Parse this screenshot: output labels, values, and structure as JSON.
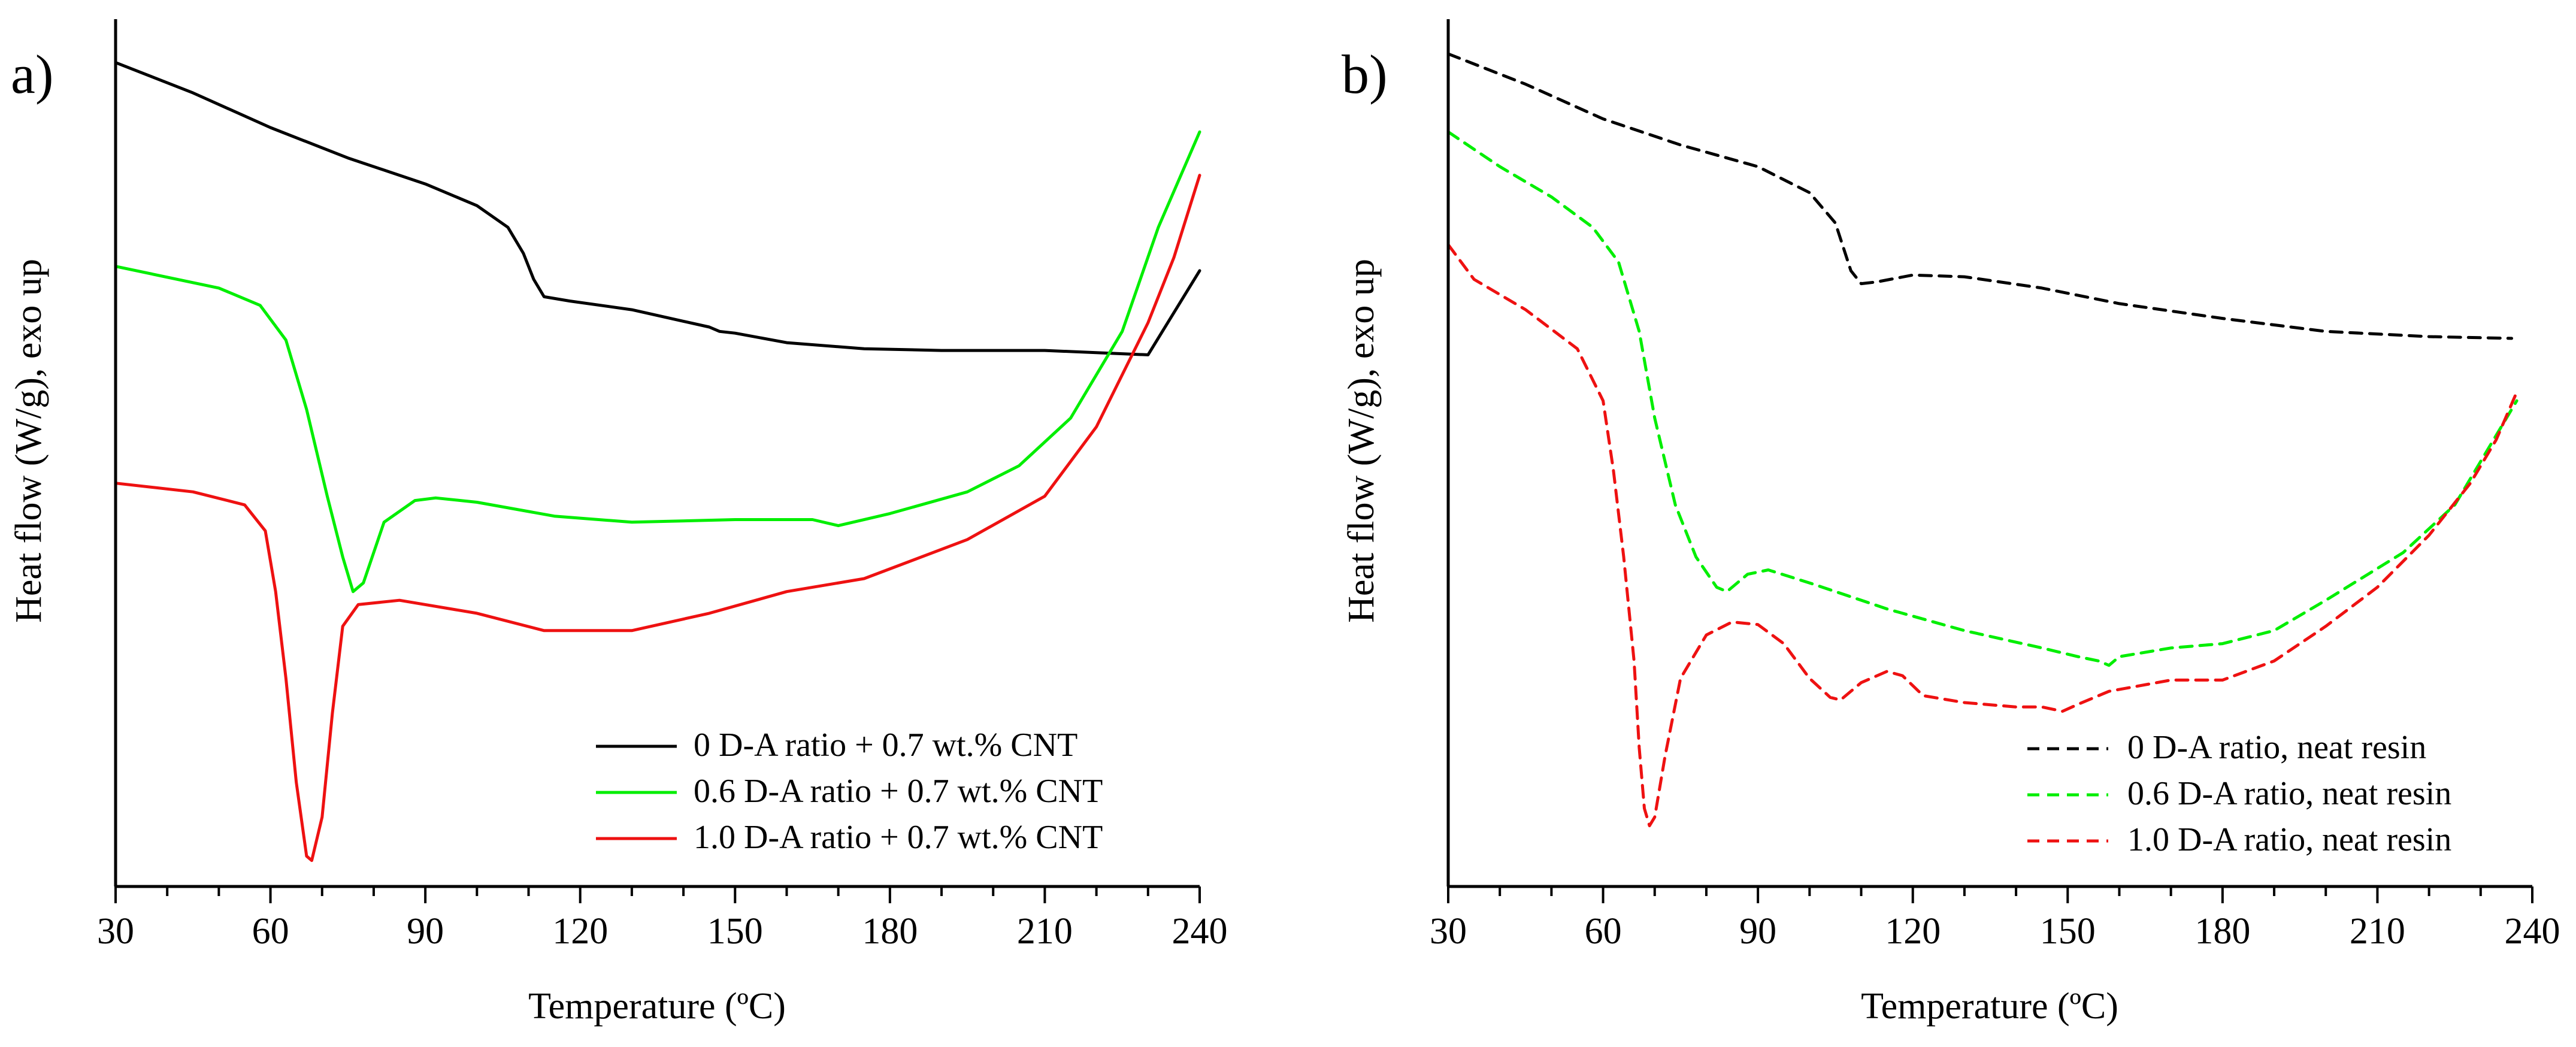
{
  "chart_data": [
    {
      "type": "line",
      "panel_label": "a)",
      "xlabel": "Temperature (ºC)",
      "ylabel": "Heat flow (W/g), exo up",
      "xlim": [
        30,
        240
      ],
      "ylim": [
        0,
        100
      ],
      "xticks": [
        "30",
        "60",
        "90",
        "120",
        "150",
        "180",
        "210",
        "240"
      ],
      "yticks_shown": false,
      "legend_position": "bottom-right",
      "series": [
        {
          "name": "0 D-A ratio + 0.7 wt.% CNT",
          "color": "#000000",
          "dash": "solid",
          "points": [
            [
              30,
              95
            ],
            [
              45,
              91.5
            ],
            [
              60,
              87.5
            ],
            [
              75,
              84
            ],
            [
              90,
              81
            ],
            [
              100,
              78.5
            ],
            [
              106,
              76
            ],
            [
              109,
              73
            ],
            [
              111,
              70
            ],
            [
              113,
              68
            ],
            [
              118,
              67.5
            ],
            [
              130,
              66.5
            ],
            [
              145,
              64.5
            ],
            [
              147,
              64
            ],
            [
              150,
              63.8
            ],
            [
              160,
              62.7
            ],
            [
              175,
              62
            ],
            [
              190,
              61.8
            ],
            [
              210,
              61.8
            ],
            [
              230,
              61.3
            ],
            [
              240,
              71
            ]
          ]
        },
        {
          "name": "0.6 D-A ratio + 0.7 wt.% CNT",
          "color": "#00ee00",
          "dash": "solid",
          "points": [
            [
              30,
              71.5
            ],
            [
              50,
              69
            ],
            [
              58,
              67
            ],
            [
              63,
              63
            ],
            [
              67,
              55
            ],
            [
              71,
              45
            ],
            [
              74,
              38
            ],
            [
              76,
              34
            ],
            [
              78,
              35
            ],
            [
              82,
              42
            ],
            [
              88,
              44.5
            ],
            [
              92,
              44.8
            ],
            [
              100,
              44.3
            ],
            [
              115,
              42.7
            ],
            [
              130,
              42
            ],
            [
              150,
              42.3
            ],
            [
              165,
              42.3
            ],
            [
              170,
              41.6
            ],
            [
              180,
              43
            ],
            [
              195,
              45.5
            ],
            [
              205,
              48.5
            ],
            [
              215,
              54
            ],
            [
              225,
              64
            ],
            [
              232,
              76
            ],
            [
              240,
              87
            ]
          ]
        },
        {
          "name": "1.0 D-A ratio + 0.7 wt.% CNT",
          "color": "#ee1111",
          "dash": "solid",
          "points": [
            [
              30,
              46.5
            ],
            [
              45,
              45.5
            ],
            [
              55,
              44
            ],
            [
              59,
              41
            ],
            [
              61,
              34
            ],
            [
              63,
              24
            ],
            [
              65,
              12
            ],
            [
              67,
              3.5
            ],
            [
              68,
              3
            ],
            [
              70,
              8
            ],
            [
              72,
              20
            ],
            [
              74,
              30
            ],
            [
              77,
              32.5
            ],
            [
              85,
              33
            ],
            [
              100,
              31.5
            ],
            [
              113,
              29.5
            ],
            [
              120,
              29.5
            ],
            [
              130,
              29.5
            ],
            [
              145,
              31.5
            ],
            [
              160,
              34
            ],
            [
              175,
              35.5
            ],
            [
              195,
              40
            ],
            [
              210,
              45
            ],
            [
              220,
              53
            ],
            [
              230,
              65
            ],
            [
              235,
              72.5
            ],
            [
              240,
              82
            ]
          ]
        }
      ]
    },
    {
      "type": "line",
      "panel_label": "b)",
      "xlabel": "Temperature (ºC)",
      "ylabel": "Heat flow (W/g), exo up",
      "xlim": [
        30,
        240
      ],
      "ylim": [
        0,
        100
      ],
      "xticks": [
        "30",
        "60",
        "90",
        "120",
        "150",
        "180",
        "210",
        "240"
      ],
      "yticks_shown": false,
      "legend_position": "bottom-right",
      "series": [
        {
          "name": "0 D-A ratio, neat resin",
          "color": "#000000",
          "dash": "dashed",
          "points": [
            [
              30,
              96
            ],
            [
              45,
              92.5
            ],
            [
              60,
              88.5
            ],
            [
              75,
              85.5
            ],
            [
              90,
              83
            ],
            [
              100,
              80
            ],
            [
              105,
              76.5
            ],
            [
              108,
              71
            ],
            [
              110,
              69.5
            ],
            [
              113,
              69.7
            ],
            [
              120,
              70.5
            ],
            [
              130,
              70.3
            ],
            [
              145,
              69
            ],
            [
              160,
              67.2
            ],
            [
              180,
              65.5
            ],
            [
              200,
              64
            ],
            [
              220,
              63.4
            ],
            [
              236,
              63.2
            ]
          ]
        },
        {
          "name": "0.6 D-A ratio, neat resin",
          "color": "#00ee00",
          "dash": "dashed",
          "points": [
            [
              30,
              87
            ],
            [
              40,
              83
            ],
            [
              50,
              79.5
            ],
            [
              58,
              76
            ],
            [
              63,
              72
            ],
            [
              67,
              64
            ],
            [
              70,
              54
            ],
            [
              74,
              44
            ],
            [
              78,
              38
            ],
            [
              82,
              34.5
            ],
            [
              84,
              34
            ],
            [
              88,
              36
            ],
            [
              92,
              36.5
            ],
            [
              100,
              35
            ],
            [
              115,
              32
            ],
            [
              130,
              29.5
            ],
            [
              145,
              27.5
            ],
            [
              152,
              26.5
            ],
            [
              156,
              26
            ],
            [
              158,
              25.5
            ],
            [
              160,
              26.5
            ],
            [
              170,
              27.5
            ],
            [
              180,
              28
            ],
            [
              190,
              29.5
            ],
            [
              200,
              33
            ],
            [
              215,
              38.5
            ],
            [
              225,
              44
            ],
            [
              232,
              51
            ],
            [
              237,
              56
            ]
          ]
        },
        {
          "name": "1.0 D-A ratio, neat resin",
          "color": "#ee1111",
          "dash": "dashed",
          "points": [
            [
              30,
              74
            ],
            [
              35,
              70
            ],
            [
              45,
              66.5
            ],
            [
              55,
              62
            ],
            [
              60,
              56
            ],
            [
              62,
              48
            ],
            [
              64,
              38
            ],
            [
              66,
              26
            ],
            [
              67,
              16
            ],
            [
              68,
              9
            ],
            [
              69,
              7
            ],
            [
              70,
              8
            ],
            [
              72,
              15
            ],
            [
              75,
              24
            ],
            [
              80,
              29
            ],
            [
              85,
              30.5
            ],
            [
              90,
              30.2
            ],
            [
              95,
              28
            ],
            [
              100,
              24
            ],
            [
              104,
              21.8
            ],
            [
              106,
              21.5
            ],
            [
              110,
              23.5
            ],
            [
              115,
              24.8
            ],
            [
              118,
              24.3
            ],
            [
              122,
              22
            ],
            [
              130,
              21.2
            ],
            [
              140,
              20.7
            ],
            [
              145,
              20.7
            ],
            [
              149,
              20.2
            ],
            [
              152,
              21
            ],
            [
              158,
              22.5
            ],
            [
              170,
              23.8
            ],
            [
              180,
              23.8
            ],
            [
              190,
              26
            ],
            [
              200,
              30
            ],
            [
              210,
              34.5
            ],
            [
              220,
              40.5
            ],
            [
              228,
              46.5
            ],
            [
              233,
              51.5
            ],
            [
              237,
              57
            ]
          ]
        }
      ]
    }
  ]
}
